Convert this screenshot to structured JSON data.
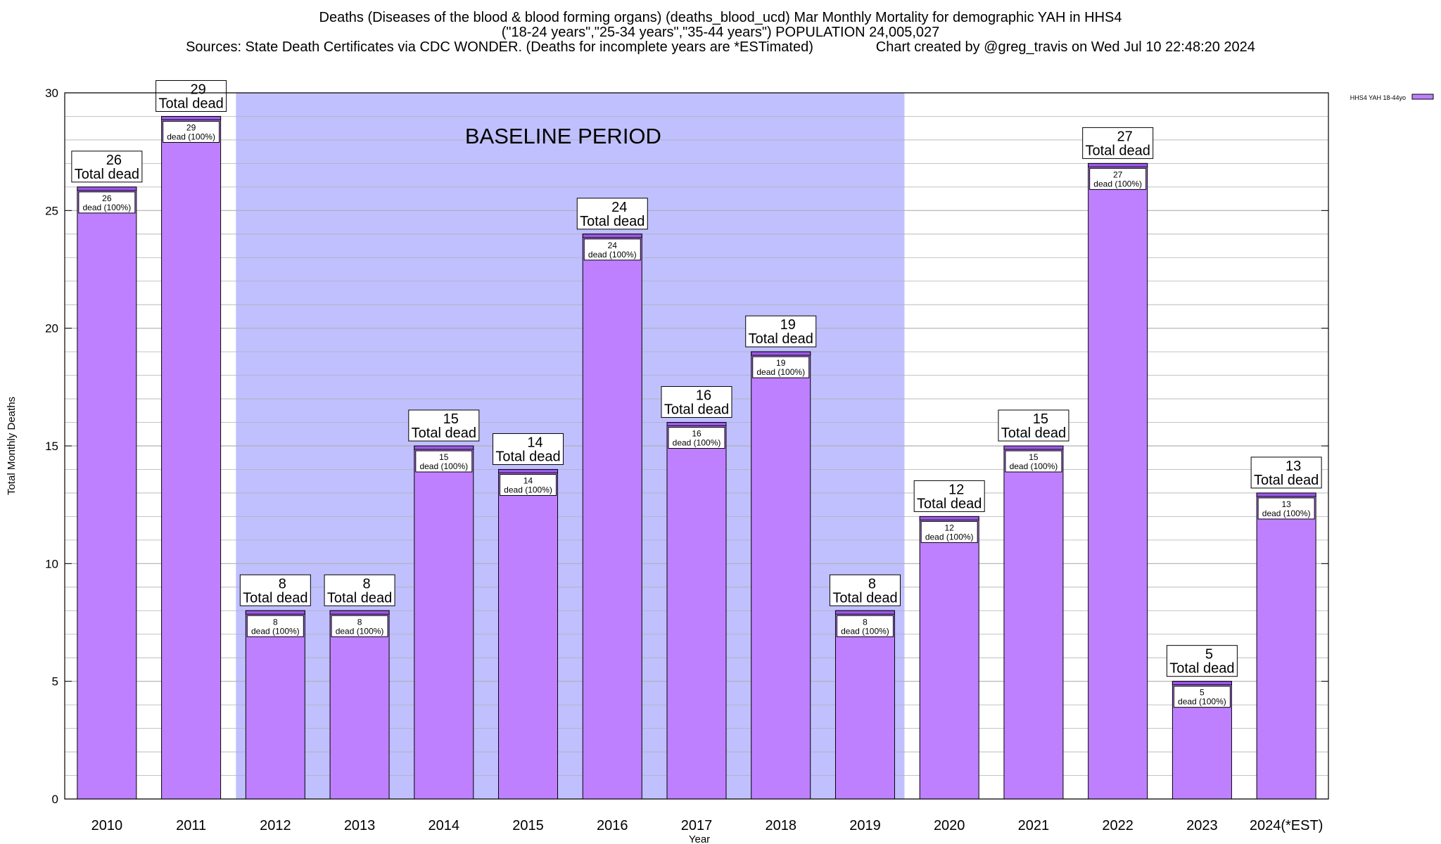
{
  "title_lines": [
    "Deaths (Diseases of the blood & blood forming organs) (deaths_blood_ucd) Mar Monthly Mortality for demographic YAH in HHS4",
    "(\"18-24 years\",\"25-34 years\",\"35-44 years\") POPULATION 24,005,027",
    "Sources: State Death Certificates via CDC WONDER. (Deaths for incomplete years are *ESTimated)                Chart created by @greg_travis on Wed Jul 10 22:48:20 2024"
  ],
  "chart_data": {
    "type": "bar",
    "xlabel": "Year",
    "ylabel": "Total Monthly Deaths",
    "ylim": [
      0,
      30
    ],
    "yticks": [
      0,
      5,
      10,
      15,
      20,
      25,
      30
    ],
    "y_minor_step": 1,
    "grid": true,
    "legend": {
      "position": "top-right",
      "label": "HHS4 YAH 18-44yo"
    },
    "baseline_label": "BASELINE PERIOD",
    "baseline_range": [
      "2012",
      "2019"
    ],
    "total_label": "Total dead",
    "inner_label_suffix": "dead (100%)",
    "categories": [
      "2010",
      "2011",
      "2012",
      "2013",
      "2014",
      "2015",
      "2016",
      "2017",
      "2018",
      "2019",
      "2020",
      "2021",
      "2022",
      "2023",
      "2024(*EST)"
    ],
    "series": [
      {
        "name": "HHS4 YAH 18-44yo",
        "values": [
          26,
          29,
          8,
          8,
          15,
          14,
          24,
          16,
          19,
          8,
          12,
          15,
          27,
          5,
          13
        ]
      }
    ],
    "colors": {
      "bar": "#bf80ff",
      "bar_top": "#9b59e6",
      "baseline": "#c0c0ff",
      "grid": "#b0b0b0"
    }
  }
}
